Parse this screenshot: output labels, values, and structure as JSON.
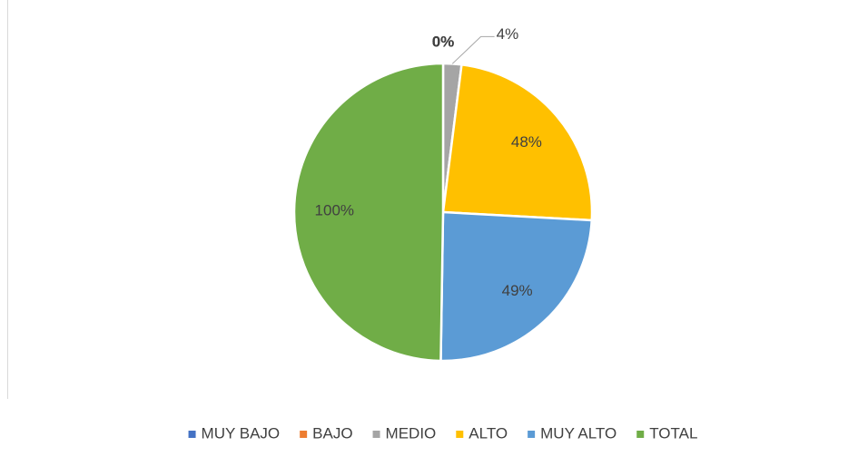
{
  "chart_data": {
    "type": "pie",
    "categories": [
      "MUY BAJO",
      "BAJO",
      "MEDIO",
      "ALTO",
      "MUY ALTO",
      "TOTAL"
    ],
    "values": [
      0,
      0,
      4,
      48,
      49,
      100
    ],
    "value_labels": [
      "0%",
      "0%",
      "4%",
      "48%",
      "49%",
      "100%"
    ],
    "colors": [
      "#4472c4",
      "#ed7d31",
      "#a5a5a5",
      "#ffc000",
      "#5b9bd5",
      "#70ad47"
    ],
    "legend": "bottom"
  }
}
